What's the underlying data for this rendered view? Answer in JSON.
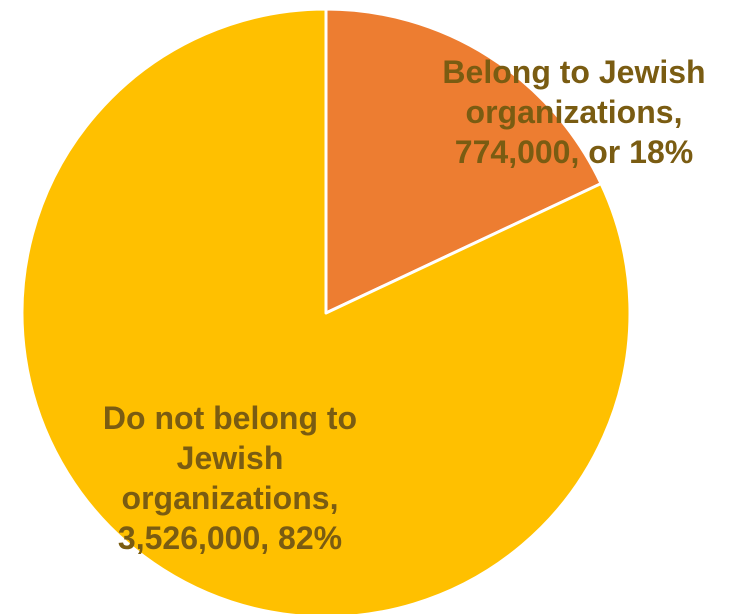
{
  "chart_data": {
    "type": "pie",
    "start_angle_deg": 0,
    "direction": "clockwise",
    "slices": [
      {
        "name": "Belong to Jewish organizations",
        "value": 774000,
        "percent": 18,
        "color": "#ED7D31",
        "label_lines": [
          "Belong to Jewish",
          "organizations,",
          "774,000, or 18%"
        ]
      },
      {
        "name": "Do not belong to Jewish organizations",
        "value": 3526000,
        "percent": 82,
        "color": "#FFC000",
        "label_lines": [
          "Do not belong to",
          "Jewish",
          "organizations,",
          "3,526,000, 82%"
        ]
      }
    ],
    "label_color": "#7A5C12",
    "slice_border_color": "#FFFFFF"
  }
}
